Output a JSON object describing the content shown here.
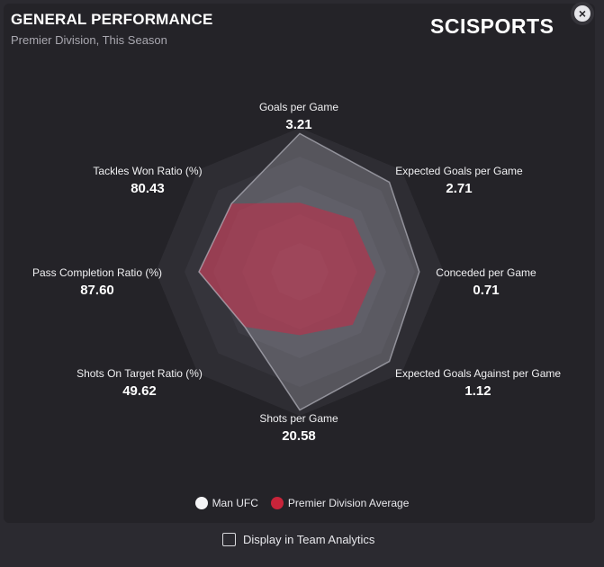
{
  "header": {
    "title": "GENERAL PERFORMANCE",
    "subtitle": "Premier Division, This Season",
    "logo_text": "SCISPORTS",
    "close_label": "×"
  },
  "chart_data": {
    "type": "radar",
    "axes": [
      {
        "name": "Goals per Game",
        "value": "3.21",
        "team": 0.96,
        "average": 0.48
      },
      {
        "name": "Expected Goals per Game",
        "value": "2.71",
        "team": 0.88,
        "average": 0.52
      },
      {
        "name": "Conceded per Game",
        "value": "0.71",
        "team": 0.83,
        "average": 0.53
      },
      {
        "name": "Expected Goals Against per Game",
        "value": "1.12",
        "team": 0.88,
        "average": 0.52
      },
      {
        "name": "Shots per Game",
        "value": "20.58",
        "team": 0.96,
        "average": 0.44
      },
      {
        "name": "Shots On Target Ratio (%)",
        "value": "49.62",
        "team": 0.54,
        "average": 0.54
      },
      {
        "name": "Pass Completion Ratio (%)",
        "value": "87.60",
        "team": 0.7,
        "average": 0.7
      },
      {
        "name": "Tackles Won Ratio (%)",
        "value": "80.43",
        "team": 0.67,
        "average": 0.67
      }
    ],
    "series": [
      {
        "name": "Man UFC",
        "color": "#f5f5f7"
      },
      {
        "name": "Premier Division Average",
        "color": "#c8243a"
      }
    ],
    "rings": 5
  },
  "footer": {
    "checkbox_label": "Display in Team Analytics",
    "checkbox_checked": false
  }
}
